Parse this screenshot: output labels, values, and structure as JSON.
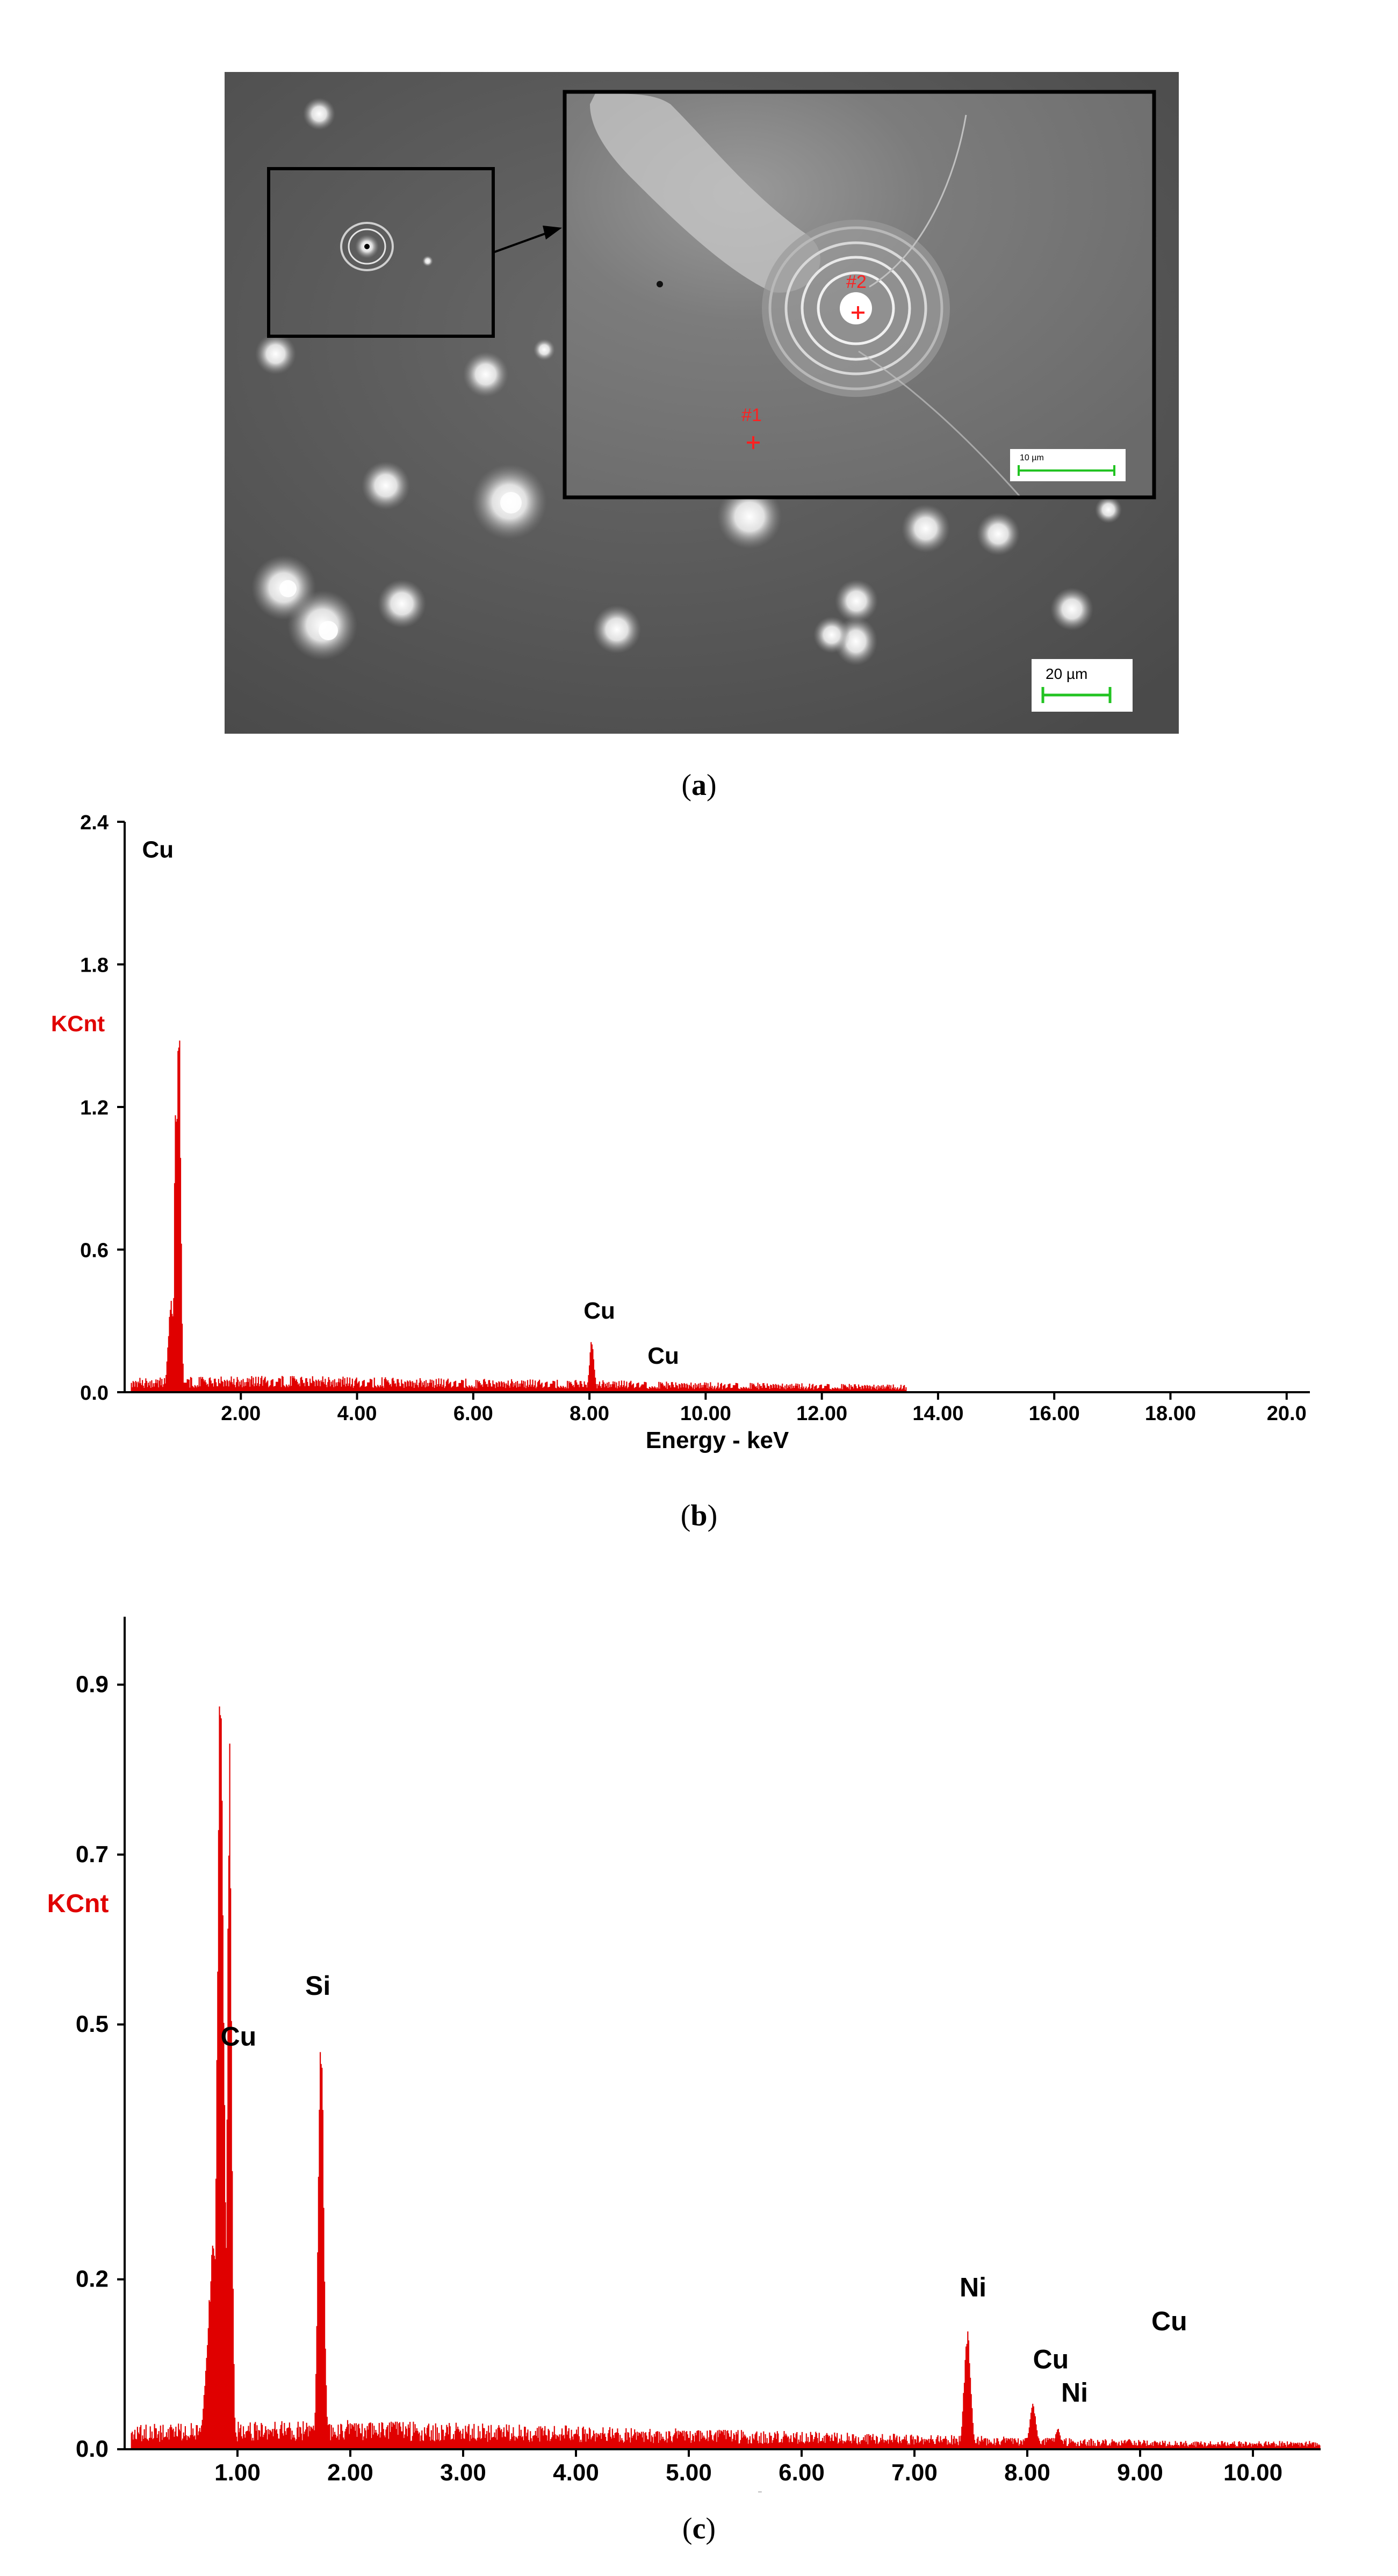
{
  "figure": {
    "panels": [
      {
        "id": "a",
        "caption_open": "(",
        "caption_letter": "a",
        "caption_close": ")"
      },
      {
        "id": "b",
        "caption_open": "(",
        "caption_letter": "b",
        "caption_close": ")"
      },
      {
        "id": "c",
        "caption_open": "(",
        "caption_letter": "c",
        "caption_close": ")"
      }
    ]
  },
  "micrograph": {
    "point_labels": [
      "#1",
      "#2"
    ],
    "inset_scale_label": "10 µm",
    "main_scale_label": "20 µm",
    "colors": {
      "background": "#575757",
      "particle": "#e6e6e6",
      "marker": "#ff2020",
      "scale_bar": "#22c322",
      "frame": "#000000"
    }
  },
  "chart_data": [
    {
      "type": "area",
      "title": "",
      "xlabel": "Energy - keV",
      "ylabel": "KCnt",
      "xlim": [
        0,
        20.4
      ],
      "ylim": [
        0,
        2.4
      ],
      "x_ticks": [
        "2.00",
        "4.00",
        "6.00",
        "8.00",
        "10.00",
        "12.00",
        "14.00",
        "16.00",
        "18.00",
        "20.0"
      ],
      "y_ticks": [
        "0.0",
        "0.6",
        "1.2",
        "1.8",
        "2.4"
      ],
      "color": "#e00000",
      "grid": false,
      "peaks": [
        {
          "x": 0.93,
          "y": 1.71,
          "width": 0.07
        },
        {
          "x": 0.88,
          "y": 1.3,
          "width": 0.05
        },
        {
          "x": 0.8,
          "y": 0.4,
          "width": 0.1
        },
        {
          "x": 8.04,
          "y": 0.23,
          "width": 0.08
        },
        {
          "x": 8.9,
          "y": 0.03,
          "width": 0.08
        }
      ],
      "background_level": 0.04,
      "annotations": [
        {
          "text": "Cu",
          "x": 0.3,
          "y": 2.25
        },
        {
          "text": "Cu",
          "x": 7.9,
          "y": 0.31
        },
        {
          "text": "Cu",
          "x": 9.0,
          "y": 0.12
        }
      ]
    },
    {
      "type": "area",
      "title": "",
      "xlabel": "Energy - keV",
      "ylabel": "KCnt",
      "xlim": [
        0,
        10.6
      ],
      "ylim": [
        0,
        0.98
      ],
      "x_ticks": [
        "1.00",
        "2.00",
        "3.00",
        "4.00",
        "5.00",
        "6.00",
        "7.00",
        "8.00",
        "9.00",
        "10.00"
      ],
      "y_ticks": [
        "0.0",
        "0.2",
        "0.5",
        "0.7",
        "0.9"
      ],
      "color": "#e00000",
      "grid": false,
      "peaks": [
        {
          "x": 0.85,
          "y": 0.96,
          "width": 0.06
        },
        {
          "x": 0.93,
          "y": 0.84,
          "width": 0.04
        },
        {
          "x": 0.8,
          "y": 0.26,
          "width": 0.12
        },
        {
          "x": 1.74,
          "y": 0.52,
          "width": 0.05
        },
        {
          "x": 7.47,
          "y": 0.14,
          "width": 0.06
        },
        {
          "x": 8.05,
          "y": 0.055,
          "width": 0.06
        },
        {
          "x": 8.27,
          "y": 0.025,
          "width": 0.05
        },
        {
          "x": 8.9,
          "y": 0.012,
          "width": 0.06
        }
      ],
      "background_level": 0.02,
      "annotations": [
        {
          "text": "Si",
          "x": 1.6,
          "y": 0.535
        },
        {
          "text": "Cu",
          "x": 0.85,
          "y": 0.475
        },
        {
          "text": "Ni",
          "x": 7.4,
          "y": 0.18
        },
        {
          "text": "Cu",
          "x": 8.05,
          "y": 0.095
        },
        {
          "text": "Ni",
          "x": 8.3,
          "y": 0.056
        },
        {
          "text": "Cu",
          "x": 9.1,
          "y": 0.14
        }
      ]
    }
  ]
}
